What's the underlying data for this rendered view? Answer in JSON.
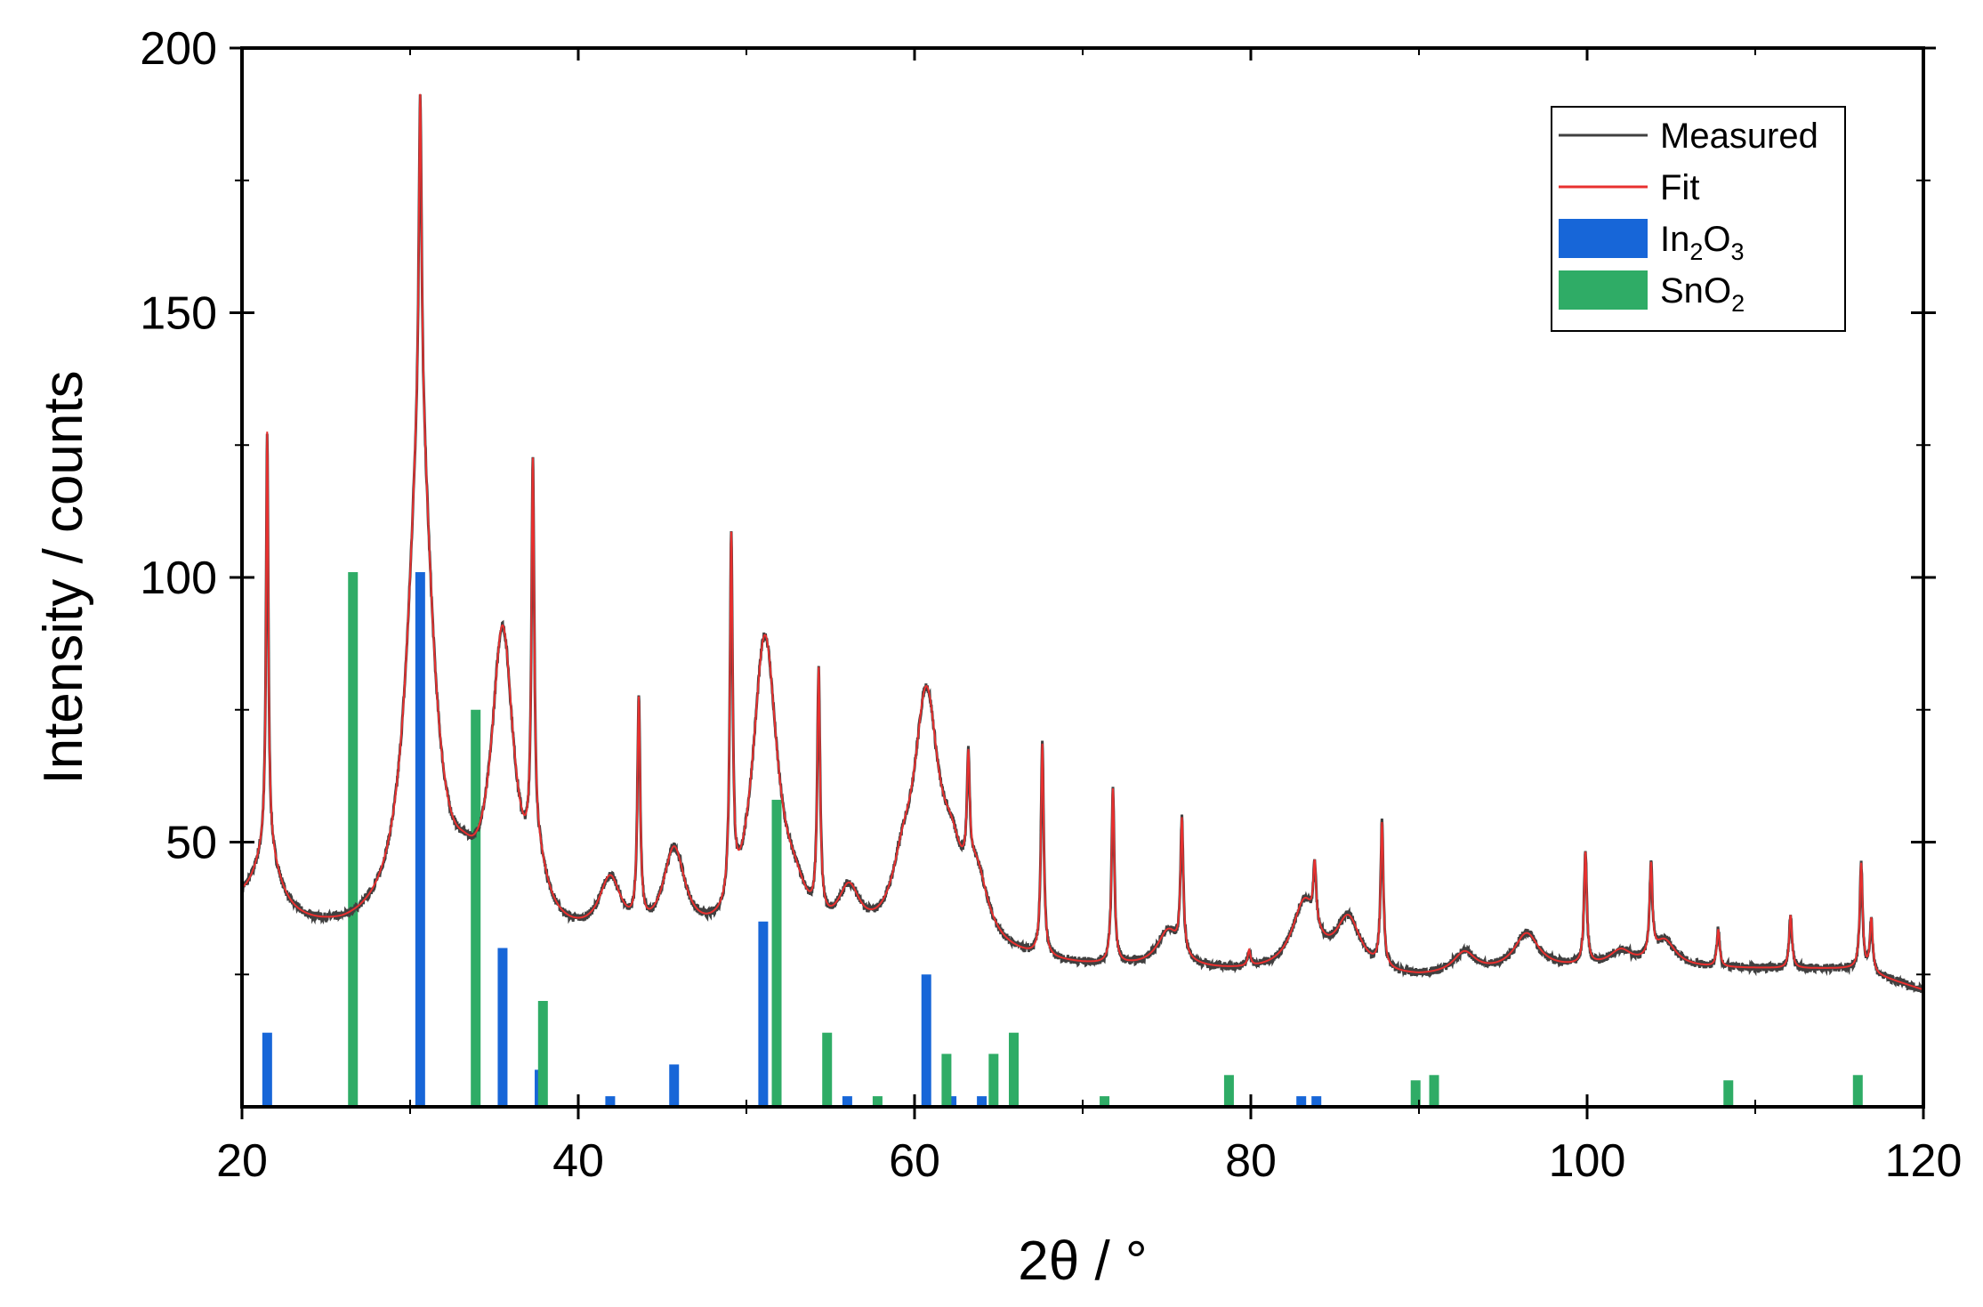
{
  "chart_data": {
    "type": "line",
    "xlabel": "2θ / °",
    "ylabel": "Intensity / counts",
    "xlim": [
      20,
      120
    ],
    "ylim": [
      0,
      200
    ],
    "x_ticks": [
      20,
      40,
      60,
      80,
      100,
      120
    ],
    "y_ticks": [
      50,
      100,
      150,
      200
    ],
    "y_tick_labels_shown": [
      "50",
      "100",
      "150",
      "200"
    ],
    "grid": false,
    "legend_position": "top-right",
    "legend": [
      {
        "label": "Measured",
        "kind": "line",
        "color": "#404040"
      },
      {
        "label": "Fit",
        "kind": "line",
        "color": "#e8302f"
      },
      {
        "label": "In",
        "sub1": "2",
        "mid": "O",
        "sub2": "3",
        "kind": "bar",
        "color": "#1766d8"
      },
      {
        "label": "Sn",
        "sub1": "",
        "mid": "O",
        "sub2": "2",
        "kind": "bar",
        "color": "#2fac66"
      }
    ],
    "pattern": {
      "background": [
        [
          20,
          36.5
        ],
        [
          22,
          33.5
        ],
        [
          26,
          31.5
        ],
        [
          30,
          31
        ],
        [
          34,
          31
        ],
        [
          38,
          30
        ],
        [
          44,
          29
        ],
        [
          50,
          28.5
        ],
        [
          60,
          28
        ],
        [
          70,
          26
        ],
        [
          80,
          25
        ],
        [
          90,
          24
        ],
        [
          100,
          26
        ],
        [
          110,
          26
        ],
        [
          116,
          26
        ],
        [
          120,
          22
        ]
      ],
      "peaks": [
        {
          "x": 21.5,
          "h": 14,
          "w": 0.9
        },
        {
          "x": 21.5,
          "h": 78,
          "w": 0.08
        },
        {
          "x": 30.6,
          "h": 95,
          "w": 0.9
        },
        {
          "x": 30.6,
          "h": 63,
          "w": 0.1
        },
        {
          "x": 33.2,
          "h": 4,
          "w": 0.8
        },
        {
          "x": 35.5,
          "h": 55,
          "w": 0.8
        },
        {
          "x": 37.3,
          "h": 73,
          "w": 0.1
        },
        {
          "x": 37.6,
          "h": 9,
          "w": 0.7
        },
        {
          "x": 41.9,
          "h": 11,
          "w": 0.8
        },
        {
          "x": 43.6,
          "h": 42,
          "w": 0.1
        },
        {
          "x": 45.7,
          "h": 17,
          "w": 0.8
        },
        {
          "x": 49.1,
          "h": 68,
          "w": 0.1
        },
        {
          "x": 51.1,
          "h": 58,
          "w": 0.9
        },
        {
          "x": 52.9,
          "h": 5,
          "w": 0.8
        },
        {
          "x": 54.3,
          "h": 46,
          "w": 0.1
        },
        {
          "x": 56.1,
          "h": 9,
          "w": 0.8
        },
        {
          "x": 59.3,
          "h": 9,
          "w": 0.8
        },
        {
          "x": 60.7,
          "h": 45,
          "w": 0.9
        },
        {
          "x": 62.2,
          "h": 11,
          "w": 0.8
        },
        {
          "x": 63.2,
          "h": 21,
          "w": 0.1
        },
        {
          "x": 63.7,
          "h": 12,
          "w": 0.8
        },
        {
          "x": 67.6,
          "h": 40,
          "w": 0.1
        },
        {
          "x": 71.8,
          "h": 33,
          "w": 0.1
        },
        {
          "x": 75.1,
          "h": 7,
          "w": 0.8
        },
        {
          "x": 75.9,
          "h": 25,
          "w": 0.1
        },
        {
          "x": 79.9,
          "h": 3,
          "w": 0.1
        },
        {
          "x": 83.2,
          "h": 13,
          "w": 0.9
        },
        {
          "x": 83.8,
          "h": 11,
          "w": 0.1
        },
        {
          "x": 85.8,
          "h": 10,
          "w": 0.9
        },
        {
          "x": 87.8,
          "h": 27,
          "w": 0.1
        },
        {
          "x": 92.7,
          "h": 4,
          "w": 0.8
        },
        {
          "x": 96.4,
          "h": 7,
          "w": 0.9
        },
        {
          "x": 99.9,
          "h": 21,
          "w": 0.1
        },
        {
          "x": 102.0,
          "h": 3,
          "w": 0.8
        },
        {
          "x": 103.8,
          "h": 17,
          "w": 0.1
        },
        {
          "x": 104.6,
          "h": 5,
          "w": 0.8
        },
        {
          "x": 107.8,
          "h": 7,
          "w": 0.1
        },
        {
          "x": 112.1,
          "h": 10,
          "w": 0.1
        },
        {
          "x": 116.3,
          "h": 20,
          "w": 0.1
        },
        {
          "x": 116.9,
          "h": 10,
          "w": 0.1
        }
      ]
    },
    "bar_scale_note_free": true,
    "series": [
      {
        "name": "In2O3",
        "type": "bar",
        "color": "#1766d8",
        "x": [
          21.5,
          30.6,
          35.5,
          37.7,
          41.9,
          45.7,
          51.0,
          56.0,
          60.7,
          62.2,
          64.0,
          83.0,
          83.9
        ],
        "y": [
          14,
          101,
          30,
          7,
          2,
          8,
          35,
          2,
          25,
          2,
          2,
          2,
          2
        ]
      },
      {
        "name": "SnO2",
        "type": "bar",
        "color": "#2fac66",
        "x": [
          26.6,
          33.9,
          37.9,
          51.8,
          54.8,
          57.8,
          61.9,
          64.7,
          65.9,
          71.3,
          78.7,
          89.8,
          90.9,
          108.4,
          116.1
        ],
        "y": [
          101,
          75,
          20,
          58,
          14,
          2,
          10,
          10,
          14,
          2,
          6,
          5,
          6,
          5,
          6
        ]
      }
    ]
  }
}
